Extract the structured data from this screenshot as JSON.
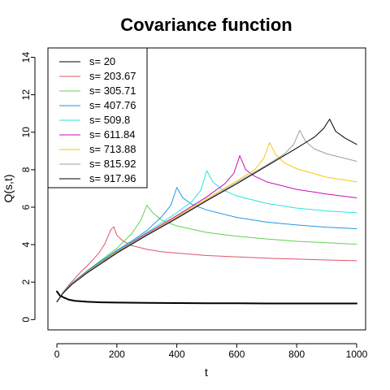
{
  "chart_data": {
    "type": "line",
    "title": "Covariance function",
    "xlabel": "t",
    "ylabel": "Q(s,t)",
    "xlim": [
      0,
      1000
    ],
    "ylim": [
      0,
      14
    ],
    "x_ticks": [
      0,
      200,
      400,
      600,
      800,
      1000
    ],
    "y_ticks": [
      0,
      2,
      4,
      6,
      8,
      10,
      12,
      14
    ],
    "legend_position": "top-left",
    "grid": false,
    "series": [
      {
        "name": "s= 20",
        "color": "#000000",
        "x": [
          0,
          10,
          20,
          40,
          60,
          100,
          150,
          200,
          300,
          400,
          500,
          600,
          700,
          800,
          900,
          1000
        ],
        "y": [
          1.5,
          1.28,
          1.2,
          1.06,
          1.0,
          0.95,
          0.92,
          0.91,
          0.89,
          0.88,
          0.87,
          0.87,
          0.86,
          0.86,
          0.86,
          0.86
        ]
      },
      {
        "name": "s= 203.67",
        "color": "#DF536B",
        "x": [
          0,
          20,
          40,
          60,
          80,
          100,
          120,
          140,
          160,
          180,
          190,
          200,
          220,
          250,
          300,
          350,
          400,
          500,
          600,
          700,
          800,
          900,
          1000
        ],
        "y": [
          0.95,
          1.45,
          1.85,
          2.2,
          2.55,
          2.85,
          3.2,
          3.55,
          4.05,
          4.8,
          4.95,
          4.5,
          4.2,
          3.95,
          3.75,
          3.62,
          3.55,
          3.42,
          3.35,
          3.28,
          3.23,
          3.18,
          3.14
        ]
      },
      {
        "name": "s= 305.71",
        "color": "#61D04F",
        "x": [
          0,
          20,
          50,
          100,
          150,
          200,
          250,
          280,
          300,
          320,
          350,
          400,
          500,
          600,
          700,
          800,
          900,
          1000
        ],
        "y": [
          0.95,
          1.42,
          1.95,
          2.6,
          3.2,
          3.8,
          4.6,
          5.3,
          6.1,
          5.7,
          5.3,
          5.0,
          4.65,
          4.45,
          4.3,
          4.18,
          4.1,
          4.02
        ]
      },
      {
        "name": "s= 407.76",
        "color": "#2297E6",
        "x": [
          0,
          20,
          50,
          100,
          150,
          200,
          250,
          300,
          350,
          380,
          400,
          420,
          450,
          500,
          600,
          700,
          800,
          900,
          1000
        ],
        "y": [
          0.95,
          1.42,
          1.95,
          2.58,
          3.15,
          3.7,
          4.2,
          4.75,
          5.5,
          6.1,
          7.05,
          6.5,
          6.15,
          5.85,
          5.45,
          5.2,
          5.05,
          4.93,
          4.85
        ]
      },
      {
        "name": "s= 509.8",
        "color": "#28E2E5",
        "x": [
          0,
          20,
          50,
          100,
          200,
          300,
          400,
          450,
          480,
          500,
          520,
          550,
          600,
          700,
          800,
          900,
          1000
        ],
        "y": [
          0.95,
          1.42,
          1.93,
          2.55,
          3.65,
          4.65,
          5.7,
          6.3,
          6.9,
          7.95,
          7.35,
          6.95,
          6.6,
          6.2,
          5.95,
          5.8,
          5.7
        ]
      },
      {
        "name": "s= 611.84",
        "color": "#CD0BBC",
        "x": [
          0,
          20,
          50,
          100,
          200,
          300,
          400,
          500,
          560,
          590,
          610,
          630,
          660,
          700,
          800,
          900,
          1000
        ],
        "y": [
          0.95,
          1.42,
          1.92,
          2.54,
          3.62,
          4.6,
          5.55,
          6.55,
          7.25,
          7.8,
          8.75,
          8.0,
          7.65,
          7.35,
          6.95,
          6.7,
          6.5
        ]
      },
      {
        "name": "s= 713.88",
        "color": "#F5C710",
        "x": [
          0,
          20,
          50,
          100,
          200,
          300,
          400,
          500,
          600,
          660,
          690,
          710,
          730,
          760,
          800,
          900,
          1000
        ],
        "y": [
          0.95,
          1.42,
          1.91,
          2.52,
          3.6,
          4.55,
          5.5,
          6.45,
          7.4,
          8.0,
          8.6,
          9.45,
          8.8,
          8.35,
          8.05,
          7.6,
          7.35
        ]
      },
      {
        "name": "s= 815.92",
        "color": "#9E9E9E",
        "x": [
          0,
          20,
          50,
          100,
          200,
          300,
          400,
          500,
          600,
          700,
          760,
          790,
          810,
          830,
          860,
          900,
          1000
        ],
        "y": [
          0.95,
          1.42,
          1.9,
          2.5,
          3.57,
          4.52,
          5.45,
          6.38,
          7.32,
          8.25,
          8.85,
          9.35,
          10.1,
          9.5,
          9.1,
          8.85,
          8.45
        ]
      },
      {
        "name": "s= 917.96",
        "color": "#000000",
        "x": [
          0,
          20,
          50,
          100,
          200,
          300,
          400,
          500,
          600,
          700,
          800,
          860,
          890,
          910,
          930,
          960,
          1000
        ],
        "y": [
          0.95,
          1.4,
          1.88,
          2.48,
          3.55,
          4.5,
          5.4,
          6.35,
          7.25,
          8.2,
          9.15,
          9.75,
          10.2,
          10.7,
          10.05,
          9.7,
          9.35
        ]
      }
    ]
  }
}
